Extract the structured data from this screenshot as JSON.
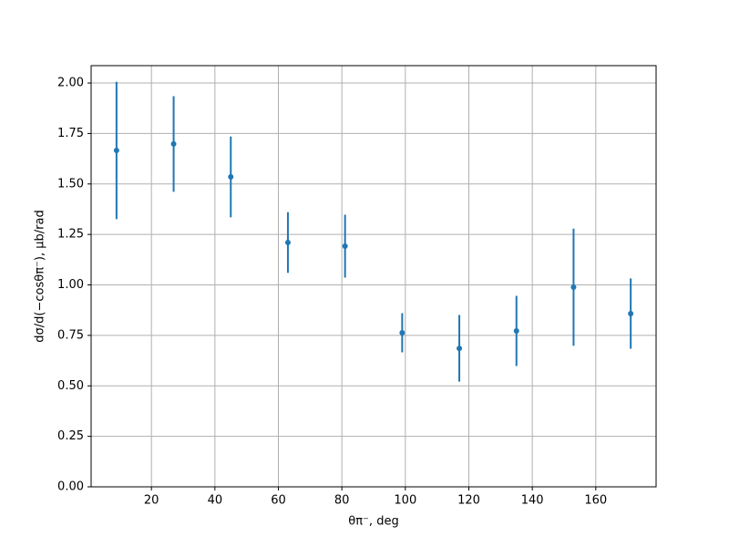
{
  "chart_data": {
    "type": "errorbar",
    "x_label": "θπ⁻, deg",
    "y_label": "dσ/d(−cosθπ⁻), μb/rad",
    "x": [
      9,
      27,
      45,
      63,
      81,
      99,
      117,
      135,
      153,
      171
    ],
    "series": [
      {
        "color": "#1f77b4",
        "values": [
          1.666,
          1.698,
          1.535,
          1.21,
          1.192,
          0.763,
          0.686,
          0.772,
          0.989,
          0.858
        ],
        "yerr": [
          0.34,
          0.237,
          0.2,
          0.15,
          0.156,
          0.097,
          0.165,
          0.174,
          0.29,
          0.174
        ]
      }
    ],
    "xlim": [
      1,
      179
    ],
    "ylim": [
      0,
      2.086
    ],
    "xticks": [
      20,
      40,
      60,
      80,
      100,
      120,
      140,
      160
    ],
    "yticks": [
      {
        "value": 0,
        "label": "0.00"
      },
      {
        "value": 0.25,
        "label": "0.25"
      },
      {
        "value": 0.5,
        "label": "0.50"
      },
      {
        "value": 0.75,
        "label": "0.75"
      },
      {
        "value": 1,
        "label": "1.00"
      },
      {
        "value": 1.25,
        "label": "1.25"
      },
      {
        "value": 1.5,
        "label": "1.50"
      },
      {
        "value": 1.75,
        "label": "1.75"
      },
      {
        "value": 2,
        "label": "2.00"
      }
    ],
    "grid": true
  }
}
